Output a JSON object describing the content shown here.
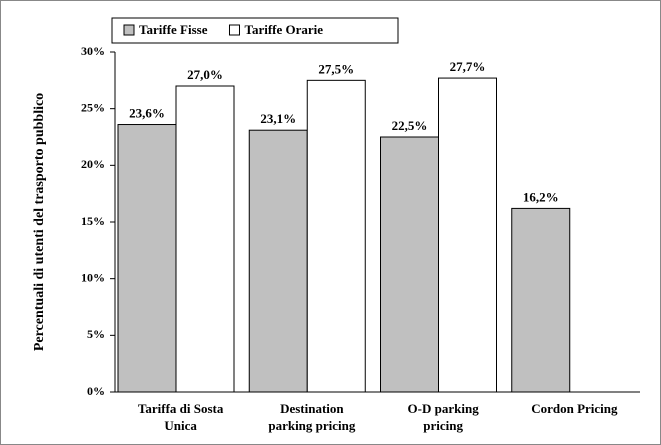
{
  "chart_data": {
    "type": "bar",
    "y_label": "Percentuali di utenti del trasporto pubblico",
    "categories": [
      [
        "Tariffa di Sosta",
        "Unica"
      ],
      [
        "Destination",
        "parking pricing"
      ],
      [
        "O-D parking",
        "pricing"
      ],
      [
        "Cordon Pricing"
      ]
    ],
    "series": [
      {
        "name": "Tariffe Fisse",
        "color": "#c0c0c0",
        "values": [
          23.6,
          23.1,
          22.5,
          16.2
        ],
        "value_labels": [
          "23,6%",
          "23,1%",
          "22,5%",
          "16,2%"
        ]
      },
      {
        "name": "Tariffe Orarie",
        "color": "#ffffff",
        "values": [
          27.0,
          27.5,
          27.7,
          null
        ],
        "value_labels": [
          "27,0%",
          "27,5%",
          "27,7%",
          null
        ]
      }
    ],
    "ylim": [
      0,
      30
    ],
    "yticks": [
      {
        "value": 0,
        "label": "0%"
      },
      {
        "value": 5,
        "label": "5%"
      },
      {
        "value": 10,
        "label": "10%"
      },
      {
        "value": 15,
        "label": "15%"
      },
      {
        "value": 20,
        "label": "20%"
      },
      {
        "value": 25,
        "label": "25%"
      },
      {
        "value": 30,
        "label": "30%"
      }
    ],
    "legend": "top-left",
    "grid": false
  }
}
